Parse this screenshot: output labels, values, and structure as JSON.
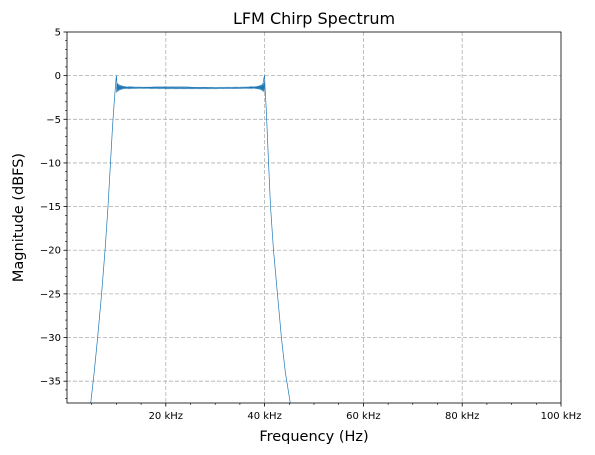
{
  "chart_data": {
    "type": "line",
    "title": "LFM Chirp Spectrum",
    "xlabel": "Frequency (Hz)",
    "ylabel": "Magnitude (dBFS)",
    "xlim": [
      0,
      100000
    ],
    "ylim": [
      -37.5,
      5
    ],
    "grid": true,
    "line_color": "#1f77b4",
    "grid_color": "#b0b0b0",
    "xticks": [
      {
        "value": 20000,
        "label": "20 kHz"
      },
      {
        "value": 40000,
        "label": "40 kHz"
      },
      {
        "value": 60000,
        "label": "60 kHz"
      },
      {
        "value": 80000,
        "label": "80 kHz"
      },
      {
        "value": 100000,
        "label": "100 kHz"
      }
    ],
    "yticks": [
      {
        "value": 5,
        "label": "5"
      },
      {
        "value": 0,
        "label": "0"
      },
      {
        "value": -5,
        "label": "−5"
      },
      {
        "value": -10,
        "label": "−10"
      },
      {
        "value": -15,
        "label": "−15"
      },
      {
        "value": -20,
        "label": "−20"
      },
      {
        "value": -25,
        "label": "−25"
      },
      {
        "value": -30,
        "label": "−30"
      },
      {
        "value": -35,
        "label": "−35"
      }
    ],
    "series": [
      {
        "x": [
          4800,
          5500,
          6200,
          7000,
          7700,
          8300,
          8800,
          9200,
          9500,
          9700,
          9850,
          9950,
          10000,
          10150,
          10400,
          11000,
          12000,
          14000,
          16000,
          18000,
          20000,
          22000,
          24000,
          26000,
          28000,
          30000,
          32000,
          34000,
          36000,
          38000,
          39000,
          39600,
          39850,
          40000,
          40050,
          40150,
          40300,
          40500,
          40800,
          41200,
          41800,
          42600,
          43400,
          44200,
          45200
        ],
        "y": [
          -37.5,
          -34,
          -30,
          -25,
          -20,
          -15,
          -10,
          -6,
          -3.5,
          -2,
          -1,
          -0.2,
          0,
          -1.2,
          -1.4,
          -1.3,
          -1.45,
          -1.4,
          -1.35,
          -1.3,
          -1.3,
          -1.3,
          -1.3,
          -1.35,
          -1.35,
          -1.4,
          -1.4,
          -1.45,
          -1.4,
          -1.3,
          -1.3,
          -1.2,
          -0.3,
          0,
          -1,
          -2,
          -3.5,
          -6,
          -10,
          -15,
          -20,
          -25,
          -30,
          -34,
          -37.5
        ]
      }
    ]
  }
}
